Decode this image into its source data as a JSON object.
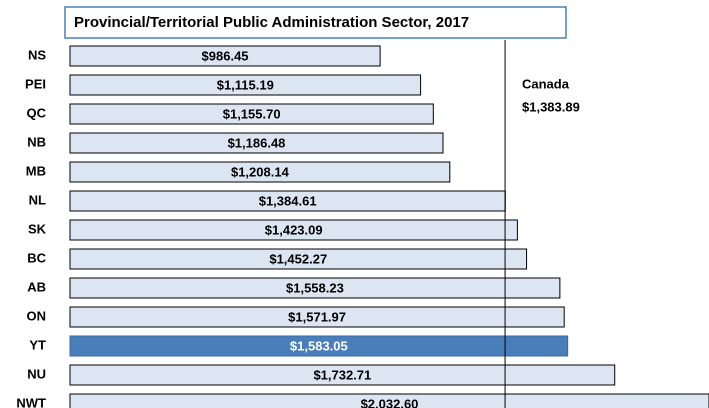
{
  "chart_data": {
    "type": "bar",
    "orientation": "horizontal",
    "title": "Provincial/Territorial Public Administration Sector, 2017",
    "categories": [
      "NS",
      "PEI",
      "QC",
      "NB",
      "MB",
      "NL",
      "SK",
      "BC",
      "AB",
      "ON",
      "YT",
      "NU",
      "NWT"
    ],
    "values": [
      986.45,
      1115.19,
      1155.7,
      1186.48,
      1208.14,
      1384.61,
      1423.09,
      1452.27,
      1558.23,
      1571.97,
      1583.05,
      1732.71,
      2032.6
    ],
    "value_labels": [
      "$986.45",
      "$1,115.19",
      "$1,155.70",
      "$1,186.48",
      "$1,208.14",
      "$1,384.61",
      "$1,423.09",
      "$1,452.27",
      "$1,558.23",
      "$1,571.97",
      "$1,583.05",
      "$1,732.71",
      "$2,032.60"
    ],
    "colors": [
      "#dce6f2",
      "#dce6f2",
      "#dce6f2",
      "#dce6f2",
      "#dce6f2",
      "#dce6f2",
      "#dce6f2",
      "#dce6f2",
      "#dce6f2",
      "#dce6f2",
      "#4a7ebb",
      "#dce6f2",
      "#dce6f2"
    ],
    "xlim": [
      0,
      2032.6
    ],
    "reference": {
      "label": "Canada",
      "value": 1383.89,
      "value_label": "$1,383.89"
    }
  }
}
